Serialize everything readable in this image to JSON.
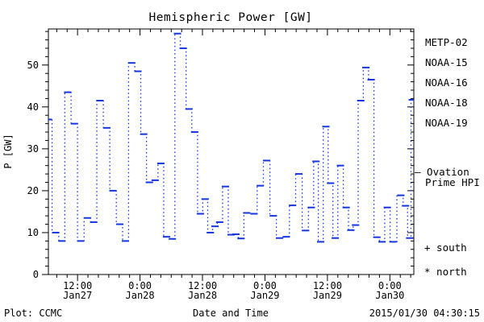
{
  "title": "Hemispheric Power [GW]",
  "footer": {
    "left": "Plot: CCMC",
    "right": "2015/01/30 04:30:15"
  },
  "legend": {
    "satellites": [
      {
        "label": "METP-02",
        "color": "#000000"
      },
      {
        "label": "NOAA-15",
        "color": "#1535e0"
      },
      {
        "label": "NOAA-16",
        "color": "#41c1f0"
      },
      {
        "label": "NOAA-18",
        "color": "#5de59a"
      },
      {
        "label": "NOAA-19",
        "color": "#ffa01e"
      }
    ],
    "series_line1": "– Ovation",
    "series_line2": "Prime HPI",
    "south_label": "+ south",
    "north_label": "* north"
  },
  "chart_data": {
    "type": "line",
    "title": "Hemispheric Power [GW]",
    "xlabel": "Date and Time",
    "ylabel": "P [GW]",
    "x_unit": "hours since 2015-01-27 00:00 UT",
    "xlim": [
      6.4,
      76.6
    ],
    "ylim": [
      0,
      58.6
    ],
    "grid": false,
    "legend_position": "right",
    "y_major_ticks": [
      0,
      10,
      20,
      30,
      40,
      50
    ],
    "y_tick_labels": [
      "0",
      "10",
      "20",
      "30",
      "40",
      "50"
    ],
    "y_minor_step": 2,
    "x_minor_step_hours": 2,
    "x_major_ticks": [
      {
        "hour": 12,
        "time": "12:00",
        "date": "Jan27"
      },
      {
        "hour": 24,
        "time": "0:00",
        "date": "Jan28"
      },
      {
        "hour": 36,
        "time": "12:00",
        "date": "Jan28"
      },
      {
        "hour": 48,
        "time": "0:00",
        "date": "Jan29"
      },
      {
        "hour": 60,
        "time": "12:00",
        "date": "Jan29"
      },
      {
        "hour": 72,
        "time": "0:00",
        "date": "Jan30"
      }
    ],
    "series": [
      {
        "name": "Ovation Prime HPI",
        "color": "#1535e0",
        "marker": "dash",
        "linestyle": "dotted",
        "x": [
          6.4,
          7.8,
          9.0,
          10.1,
          11.4,
          12.6,
          13.9,
          15.1,
          16.3,
          17.6,
          18.8,
          20.1,
          21.2,
          22.4,
          23.6,
          24.7,
          25.8,
          26.9,
          28.0,
          29.1,
          30.2,
          31.2,
          32.3,
          33.4,
          34.5,
          35.6,
          36.5,
          37.5,
          38.4,
          39.3,
          40.4,
          41.5,
          42.4,
          43.4,
          44.5,
          45.9,
          47.1,
          48.3,
          49.6,
          50.8,
          52.1,
          53.3,
          54.5,
          55.8,
          56.9,
          57.8,
          58.7,
          59.7,
          60.6,
          61.5,
          62.5,
          63.6,
          64.5,
          65.4,
          66.4,
          67.4,
          68.4,
          69.5,
          70.5,
          71.5,
          72.6,
          74.1,
          75.0,
          75.8,
          76.3
        ],
        "y": [
          37,
          10,
          8,
          43.5,
          36,
          8,
          13.5,
          12.5,
          41.5,
          35,
          20,
          12,
          8,
          50.5,
          48.5,
          33.5,
          22,
          22.5,
          26.5,
          9,
          8.5,
          57.5,
          54,
          39.5,
          34,
          14.5,
          18,
          10,
          11.5,
          12.5,
          21,
          9.5,
          9.6,
          8.6,
          14.7,
          14.5,
          21.2,
          27.2,
          14,
          8.7,
          9,
          16.5,
          24,
          10.5,
          16,
          27,
          7.8,
          35.3,
          21.8,
          8.7,
          26,
          16,
          10.6,
          11.8,
          41.5,
          49.4,
          46.5,
          8.9,
          7.8,
          16,
          7.8,
          18.9,
          16.4,
          8.7,
          41.7
        ]
      }
    ]
  }
}
